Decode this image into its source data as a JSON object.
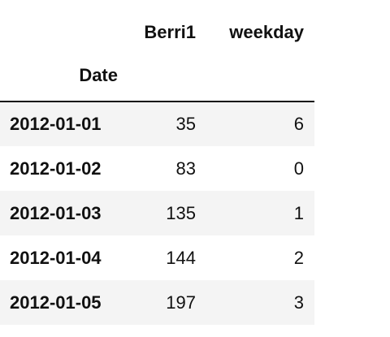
{
  "table": {
    "columns": [
      "Berri1",
      "weekday"
    ],
    "index_name": "Date",
    "rows": [
      {
        "index": "2012-01-01",
        "berri1": "35",
        "weekday": "6"
      },
      {
        "index": "2012-01-02",
        "berri1": "83",
        "weekday": "0"
      },
      {
        "index": "2012-01-03",
        "berri1": "135",
        "weekday": "1"
      },
      {
        "index": "2012-01-04",
        "berri1": "144",
        "weekday": "2"
      },
      {
        "index": "2012-01-05",
        "berri1": "197",
        "weekday": "3"
      }
    ]
  }
}
